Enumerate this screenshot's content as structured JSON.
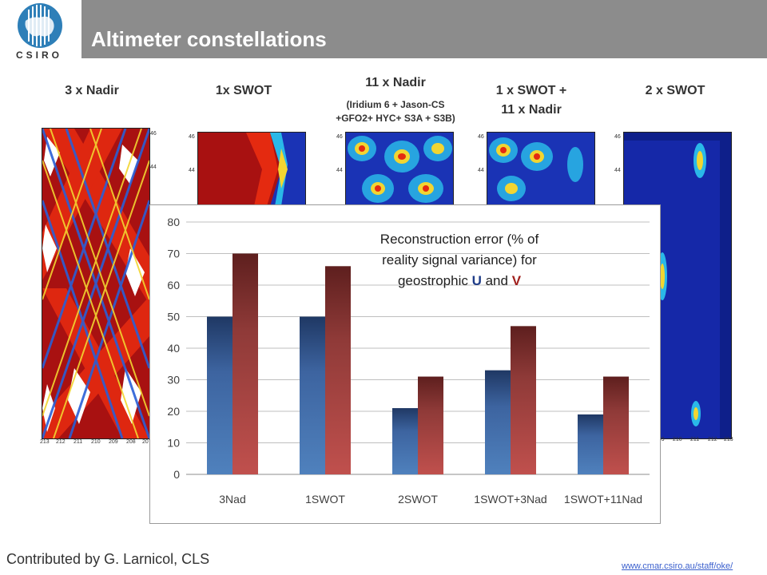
{
  "header": {
    "title": "Altimeter constellations",
    "logo_text": "CSIRO"
  },
  "panels": [
    {
      "label": "3 x Nadir"
    },
    {
      "label": "1x SWOT"
    },
    {
      "label": "11 x Nadir",
      "sublabel_line1": "(Iridium 6 + Jason-CS",
      "sublabel_line2": "+GFO2+ HYC+ S3A + S3B)"
    },
    {
      "label_line1": "1 x SWOT +",
      "label_line2": "11 x Nadir"
    },
    {
      "label": "2 x SWOT"
    }
  ],
  "map_ticks": {
    "lat": [
      "46",
      "44"
    ],
    "lon_left": [
      "213",
      "212",
      "211",
      "210",
      "209",
      "208",
      "207"
    ],
    "lon_right": [
      "209",
      "210",
      "211",
      "212",
      "213"
    ]
  },
  "chart_data": {
    "type": "bar",
    "categories": [
      "3Nad",
      "1SWOT",
      "2SWOT",
      "1SWOT+3Nad",
      "1SWOT+11Nad"
    ],
    "series": [
      {
        "name": "U",
        "values": [
          50,
          50,
          21,
          33,
          19
        ]
      },
      {
        "name": "V",
        "values": [
          70,
          66,
          31,
          47,
          31
        ]
      }
    ],
    "ylim": [
      0,
      80
    ],
    "yticks": [
      "0",
      "10",
      "20",
      "30",
      "40",
      "50",
      "60",
      "70",
      "80"
    ],
    "grid": true,
    "annotation": {
      "line1": "Reconstruction error (% of",
      "line2": "reality signal variance) for",
      "line3_prefix": "geostrophic ",
      "u": "U",
      "and": " and ",
      "v": "V"
    },
    "colors": {
      "u": "#4f81bd",
      "v": "#c0504d"
    }
  },
  "footer": {
    "credit": "Contributed by G. Larnicol, CLS",
    "url": "www.cmar.csiro.au/staff/oke/"
  }
}
